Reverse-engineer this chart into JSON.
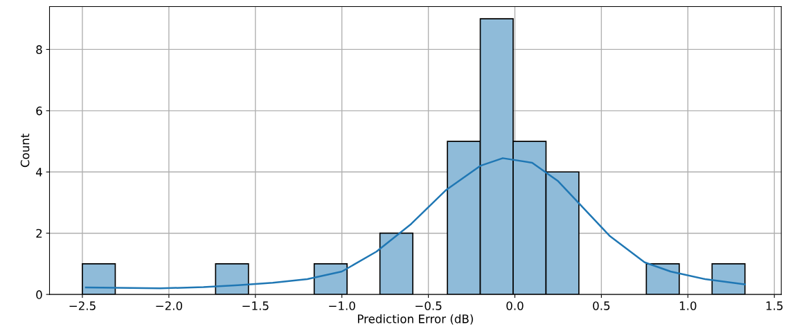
{
  "chart_data": {
    "type": "histogram",
    "xlabel": "Prediction Error (dB)",
    "ylabel": "Count",
    "bins": [
      -2.5,
      -2.31,
      -1.73,
      -1.54,
      -1.16,
      -0.97,
      -0.78,
      -0.59,
      -0.39,
      -0.2,
      -0.01,
      0.18,
      0.37,
      0.76,
      0.95,
      1.14,
      1.33
    ],
    "values": [
      1,
      0,
      1,
      0,
      1,
      0,
      2,
      0,
      5,
      9,
      5,
      4,
      0,
      1,
      0,
      1
    ],
    "color": "#8fbbd9",
    "series": [
      {
        "type": "line",
        "color": "#1f77b4",
        "x": [
          -2.48,
          -2.3,
          -2.05,
          -1.8,
          -1.6,
          -1.4,
          -1.2,
          -1.0,
          -0.8,
          -0.6,
          -0.4,
          -0.2,
          -0.07,
          0.1,
          0.25,
          0.4,
          0.55,
          0.75,
          0.9,
          1.1,
          1.33
        ],
        "values": [
          0.23,
          0.22,
          0.2,
          0.24,
          0.3,
          0.38,
          0.5,
          0.75,
          1.4,
          2.3,
          3.4,
          4.2,
          4.45,
          4.3,
          3.7,
          2.8,
          1.9,
          1.05,
          0.75,
          0.5,
          0.33
        ]
      }
    ],
    "xlim": [
      -2.69,
      1.54
    ],
    "ylim": [
      0,
      9.4
    ],
    "xticks": [
      {
        "value": -2.5,
        "label": "−2.5"
      },
      {
        "value": -2.0,
        "label": "−2.0"
      },
      {
        "value": -1.5,
        "label": "−1.5"
      },
      {
        "value": -1.0,
        "label": "−1.0"
      },
      {
        "value": -0.5,
        "label": "−0.5"
      },
      {
        "value": 0.0,
        "label": "0.0"
      },
      {
        "value": 0.5,
        "label": "0.5"
      },
      {
        "value": 1.0,
        "label": "1.0"
      },
      {
        "value": 1.5,
        "label": "1.5"
      }
    ],
    "yticks": [
      0,
      2,
      4,
      6,
      8
    ],
    "grid": true
  }
}
